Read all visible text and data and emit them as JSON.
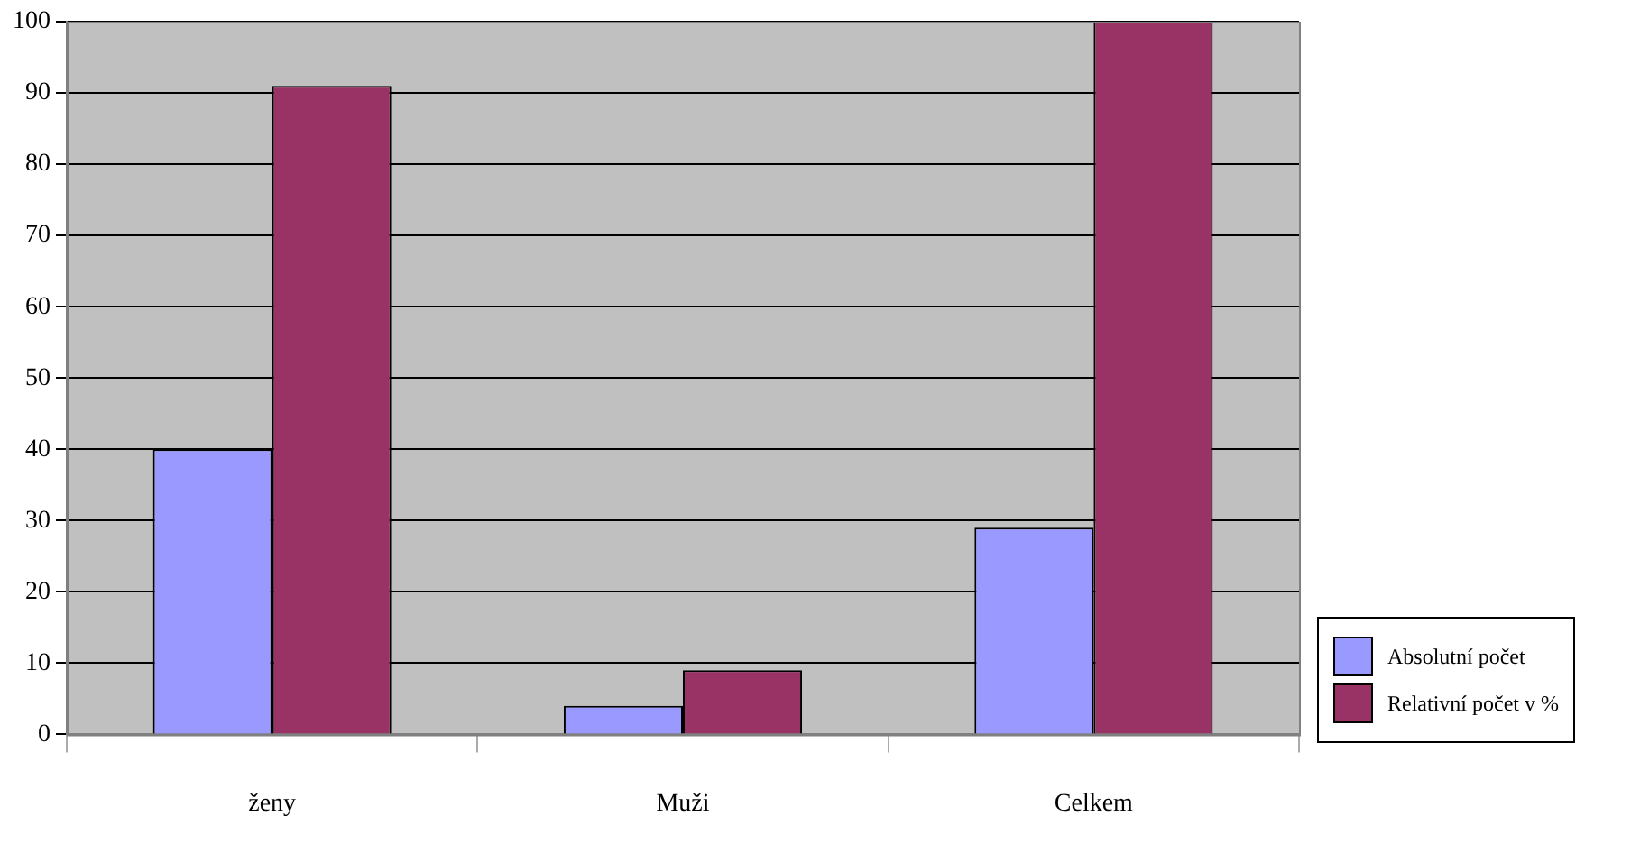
{
  "chart_data": {
    "type": "bar",
    "categories": [
      "ženy",
      "Muži",
      "Celkem"
    ],
    "series": [
      {
        "name": "Absolutní počet",
        "color": "#9999ff",
        "values": [
          40,
          4,
          29
        ]
      },
      {
        "name": "Relativní počet v %",
        "color": "#993366",
        "values": [
          91,
          9,
          100
        ]
      }
    ],
    "ylim": [
      0,
      100
    ],
    "yticks": [
      0,
      10,
      20,
      30,
      40,
      50,
      60,
      70,
      80,
      90,
      100
    ],
    "grid": "y",
    "legend": "bottom right"
  }
}
